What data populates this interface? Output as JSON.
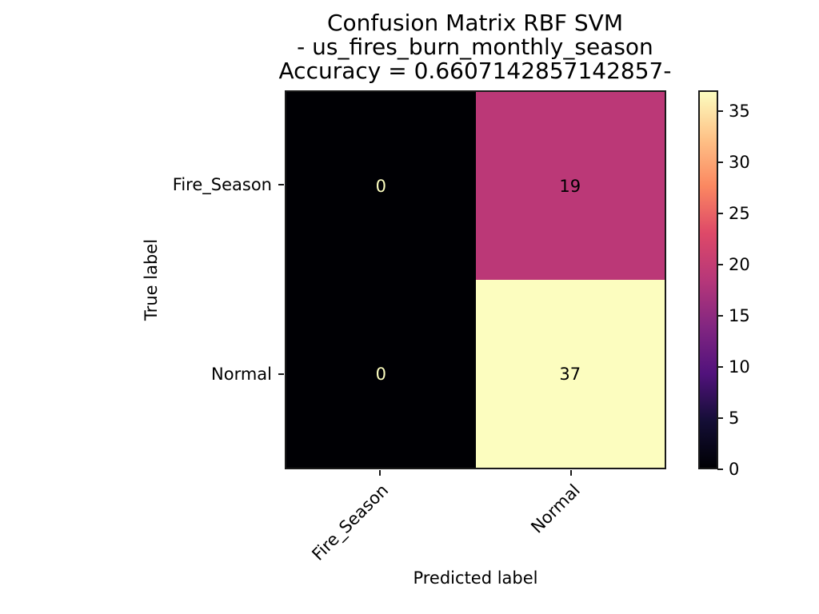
{
  "title": {
    "line1": "Confusion Matrix RBF SVM",
    "line2": "- us_fires_burn_monthly_season",
    "line3": "Accuracy = 0.6607142857142857-"
  },
  "chart_data": {
    "type": "heatmap",
    "title": "Confusion Matrix RBF SVM - us_fires_burn_monthly_season Accuracy = 0.6607142857142857-",
    "xlabel": "Predicted label",
    "ylabel": "True label",
    "x_categories": [
      "Fire_Season",
      "Normal"
    ],
    "y_categories": [
      "Fire_Season",
      "Normal"
    ],
    "matrix": [
      [
        0,
        19
      ],
      [
        0,
        37
      ]
    ],
    "vmin": 0,
    "vmax": 37,
    "colormap": "magma",
    "colorbar_ticks": [
      0,
      5,
      10,
      15,
      20,
      25,
      30,
      35
    ],
    "cell_colors": [
      [
        "#000004",
        "#bb3877"
      ],
      [
        "#000004",
        "#fcfdbf"
      ]
    ],
    "cell_text_colors": [
      [
        "#fcfdbf",
        "#000000"
      ],
      [
        "#fcfdbf",
        "#000000"
      ]
    ],
    "colormap_stops": [
      "#000004",
      "#140e36",
      "#51127c",
      "#822681",
      "#b73779",
      "#de4968",
      "#fb8861",
      "#fec287",
      "#fcfdbf"
    ],
    "text_color": "#000000",
    "background": "#ffffff",
    "legend": "none",
    "grid": false
  }
}
